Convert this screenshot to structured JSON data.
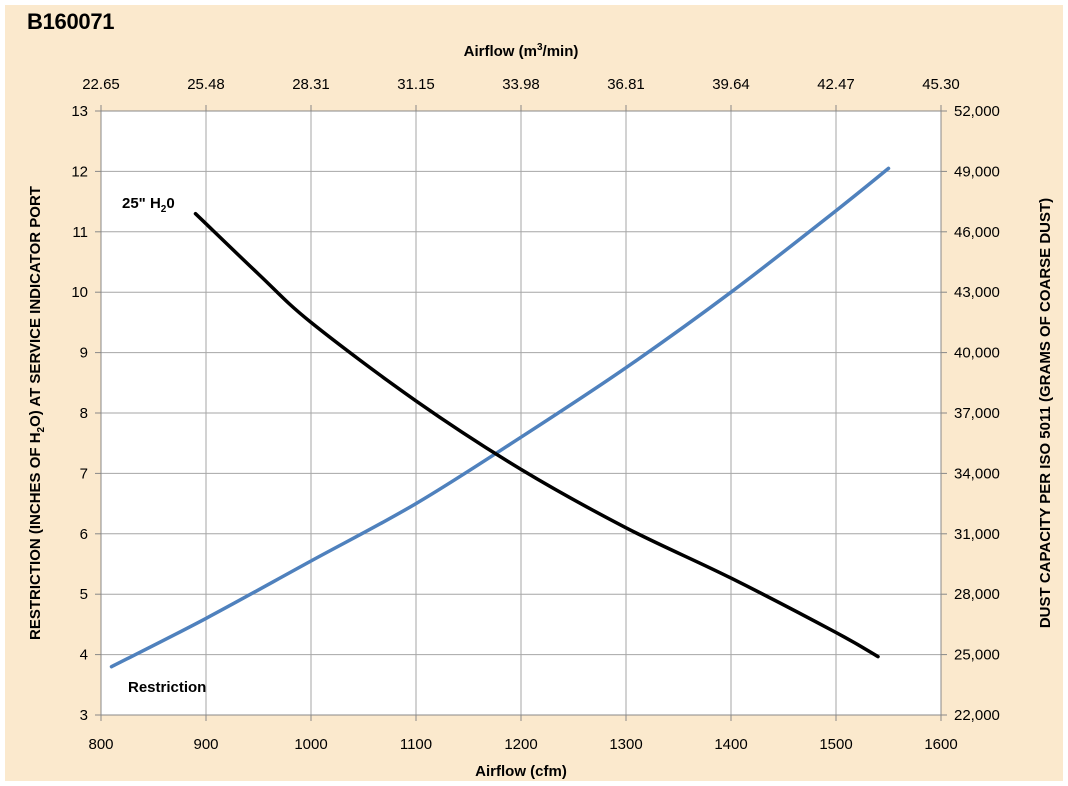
{
  "product_code": "B160071",
  "chart_data": {
    "type": "line",
    "x_bottom": {
      "label": "Airflow (cfm)",
      "range": [
        800,
        1600
      ],
      "ticks": [
        "800",
        "900",
        "1000",
        "1100",
        "1200",
        "1300",
        "1400",
        "1500",
        "1600"
      ]
    },
    "x_top": {
      "label_prefix": "Airflow (m",
      "label_sup": "3",
      "label_suffix": "/min)",
      "range": [
        22.65,
        45.3
      ],
      "ticks": [
        "22.65",
        "25.48",
        "28.31",
        "31.15",
        "33.98",
        "36.81",
        "39.64",
        "42.47",
        "45.30"
      ]
    },
    "y_left": {
      "label_prefix": "RESTRICTION (INCHES OF H",
      "label_sub": "2",
      "label_suffix": "O) AT SERVICE INDICATOR PORT",
      "range": [
        3,
        13
      ],
      "ticks": [
        "3",
        "4",
        "5",
        "6",
        "7",
        "8",
        "9",
        "10",
        "11",
        "12",
        "13"
      ],
      "color": "#4f81bd"
    },
    "y_right": {
      "label": "DUST CAPACITY PER ISO 5011 (GRAMS OF COARSE DUST)",
      "range": [
        22000,
        52000
      ],
      "ticks": [
        "22,000",
        "25,000",
        "28,000",
        "31,000",
        "34,000",
        "37,000",
        "40,000",
        "43,000",
        "46,000",
        "49,000",
        "52,000"
      ],
      "color": "#7f7f7f"
    },
    "grid": true,
    "series": [
      {
        "name": "Restriction",
        "axis": "left",
        "color": "#4f81bd",
        "x": [
          810,
          900,
          1000,
          1100,
          1200,
          1300,
          1400,
          1500,
          1550
        ],
        "y": [
          3.8,
          4.6,
          5.55,
          6.5,
          7.6,
          8.75,
          10.0,
          11.35,
          12.05
        ]
      },
      {
        "name": "25\" H₂0 dust capacity",
        "axis": "right",
        "color": "#000000",
        "x": [
          890,
          950,
          1000,
          1100,
          1200,
          1300,
          1400,
          1500,
          1540
        ],
        "y": [
          46900,
          43900,
          41500,
          37600,
          34200,
          31300,
          28800,
          26100,
          24900
        ]
      }
    ],
    "annotations": [
      {
        "id": "dust",
        "prefix": "25\" H",
        "sub": "2",
        "suffix": "0",
        "x": 885,
        "y": 11.45,
        "axis": "left"
      },
      {
        "id": "restriction",
        "text": "Restriction",
        "x": 820,
        "y": 3.45,
        "axis": "left",
        "color": "#4f81bd"
      }
    ]
  }
}
